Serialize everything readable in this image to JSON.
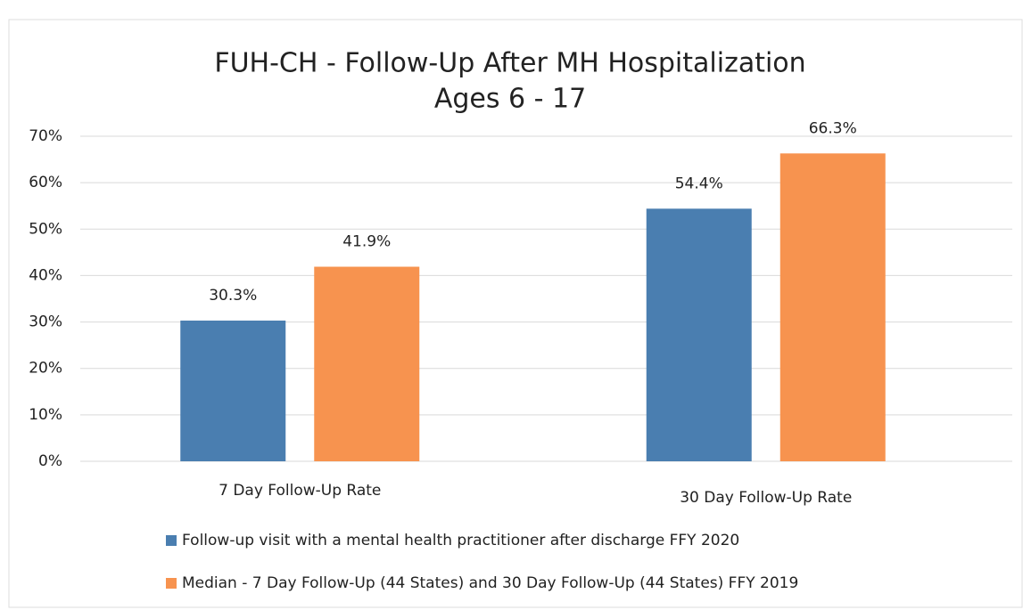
{
  "chart_data": {
    "type": "bar",
    "title": "FUH-CH - Follow-Up After MH Hospitalization",
    "subtitle": "Ages 6 - 17",
    "categories": [
      "7 Day Follow-Up Rate",
      "30 Day Follow-Up Rate"
    ],
    "series": [
      {
        "name": "Follow-up visit with a mental health practitioner after discharge FFY 2020",
        "color": "#4a7eb0",
        "values": [
          30.3,
          54.4
        ],
        "value_labels": [
          "30.3%",
          "54.4%"
        ]
      },
      {
        "name": "Median - 7 Day Follow-Up (44 States) and 30 Day Follow-Up (44 States) FFY 2019",
        "color": "#f7934f",
        "values": [
          41.9,
          66.3
        ],
        "value_labels": [
          "41.9%",
          "66.3%"
        ]
      }
    ],
    "ylim": [
      0,
      70
    ],
    "yticks": [
      {
        "value": 0,
        "label": "0%"
      },
      {
        "value": 10,
        "label": "10%"
      },
      {
        "value": 20,
        "label": "20%"
      },
      {
        "value": 30,
        "label": "30%"
      },
      {
        "value": 40,
        "label": "40%"
      },
      {
        "value": 50,
        "label": "50%"
      },
      {
        "value": 60,
        "label": "60%"
      },
      {
        "value": 70,
        "label": "70%"
      }
    ],
    "grid": true,
    "legend": "bottom"
  }
}
